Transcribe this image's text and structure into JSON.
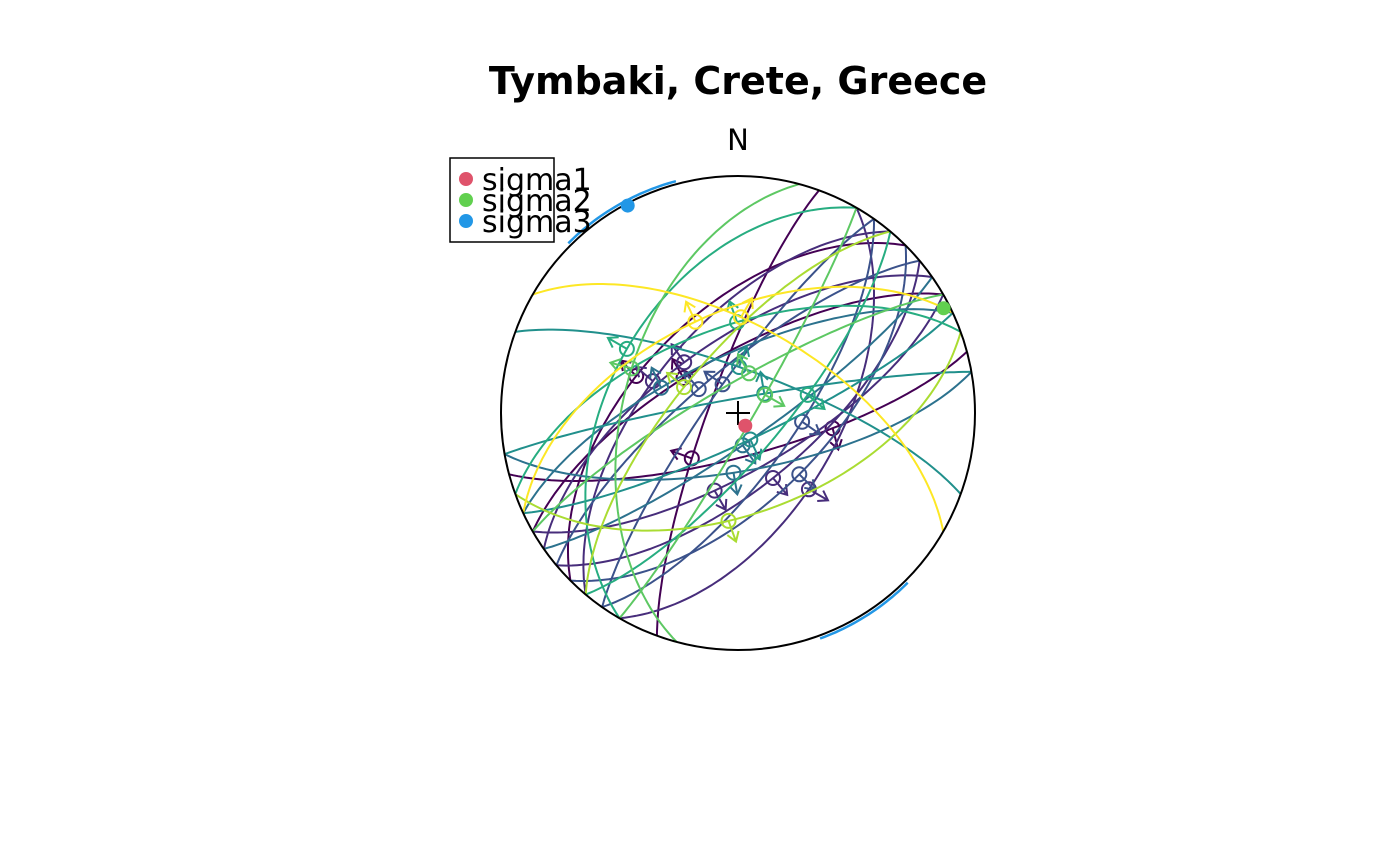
{
  "chart_data": {
    "type": "stereonet",
    "title": "Tymbaki, Crete, Greece",
    "north_label": "N",
    "legend": {
      "placement": "top-left",
      "entries": [
        {
          "name": "sigma1",
          "color": "#DF536B"
        },
        {
          "name": "sigma2",
          "color": "#61D04F"
        },
        {
          "name": "sigma3",
          "color": "#2297E6"
        }
      ]
    },
    "stress_axes": [
      {
        "name": "sigma1",
        "trend": 150,
        "plunge": 85,
        "color": "#DF536B"
      },
      {
        "name": "sigma2",
        "trend": 63,
        "plunge": 3,
        "color": "#61D04F"
      },
      {
        "name": "sigma3",
        "trend": 332,
        "plunge": 1,
        "color": "#2297E6"
      }
    ],
    "sigma3_confidence_arcs": [
      {
        "from_azimuth": 315,
        "to_azimuth": 345
      },
      {
        "from_azimuth": 135,
        "to_azimuth": 160
      }
    ],
    "colormap": [
      "#440154",
      "#472D7B",
      "#3B528B",
      "#2C728E",
      "#21908C",
      "#27AD81",
      "#5DC863",
      "#AADC32",
      "#FDE725"
    ],
    "faults": [
      {
        "strike": 75,
        "dip": 75,
        "lineation_pitch": 60,
        "color": "#440154"
      },
      {
        "strike": 240,
        "dip": 70,
        "lineation_pitch": 80,
        "color": "#440154"
      },
      {
        "strike": 225,
        "dip": 55,
        "lineation_pitch": 75,
        "color": "#440154"
      },
      {
        "strike": 200,
        "dip": 80,
        "lineation_pitch": 70,
        "color": "#440154"
      },
      {
        "strike": 60,
        "dip": 70,
        "lineation_pitch": 110,
        "color": "#472D7B"
      },
      {
        "strike": 235,
        "dip": 65,
        "lineation_pitch": 85,
        "color": "#472D7B"
      },
      {
        "strike": 50,
        "dip": 65,
        "lineation_pitch": 95,
        "color": "#472D7B"
      },
      {
        "strike": 30,
        "dip": 55,
        "lineation_pitch": 100,
        "color": "#472D7B"
      },
      {
        "strike": 220,
        "dip": 60,
        "lineation_pitch": 80,
        "color": "#472D7B"
      },
      {
        "strike": 45,
        "dip": 60,
        "lineation_pitch": 90,
        "color": "#3B528B"
      },
      {
        "strike": 230,
        "dip": 75,
        "lineation_pitch": 85,
        "color": "#3B528B"
      },
      {
        "strike": 215,
        "dip": 80,
        "lineation_pitch": 95,
        "color": "#3B528B"
      },
      {
        "strike": 35,
        "dip": 70,
        "lineation_pitch": 80,
        "color": "#3B528B"
      },
      {
        "strike": 55,
        "dip": 80,
        "lineation_pitch": 95,
        "color": "#2C728E"
      },
      {
        "strike": 245,
        "dip": 70,
        "lineation_pitch": 70,
        "color": "#2C728E"
      },
      {
        "strike": 80,
        "dip": 70,
        "lineation_pitch": 95,
        "color": "#2C728E"
      },
      {
        "strike": 260,
        "dip": 85,
        "lineation_pitch": 100,
        "color": "#21908C"
      },
      {
        "strike": 290,
        "dip": 75,
        "lineation_pitch": 85,
        "color": "#21908C"
      },
      {
        "strike": 65,
        "dip": 80,
        "lineation_pitch": 90,
        "color": "#21908C"
      },
      {
        "strike": 210,
        "dip": 45,
        "lineation_pitch": 90,
        "color": "#27AD81"
      },
      {
        "strike": 250,
        "dip": 60,
        "lineation_pitch": 100,
        "color": "#27AD81"
      },
      {
        "strike": 40,
        "dip": 75,
        "lineation_pitch": 70,
        "color": "#27AD81"
      },
      {
        "strike": 30,
        "dip": 85,
        "lineation_pitch": 80,
        "color": "#5DC863"
      },
      {
        "strike": 195,
        "dip": 50,
        "lineation_pitch": 95,
        "color": "#5DC863"
      },
      {
        "strike": 240,
        "dip": 80,
        "lineation_pitch": 100,
        "color": "#5DC863"
      },
      {
        "strike": 70,
        "dip": 55,
        "lineation_pitch": 105,
        "color": "#AADC32"
      },
      {
        "strike": 220,
        "dip": 70,
        "lineation_pitch": 85,
        "color": "#AADC32"
      },
      {
        "strike": 300,
        "dip": 60,
        "lineation_pitch": 75,
        "color": "#FDE725"
      },
      {
        "strike": 245,
        "dip": 55,
        "lineation_pitch": 90,
        "color": "#FDE725"
      }
    ]
  }
}
